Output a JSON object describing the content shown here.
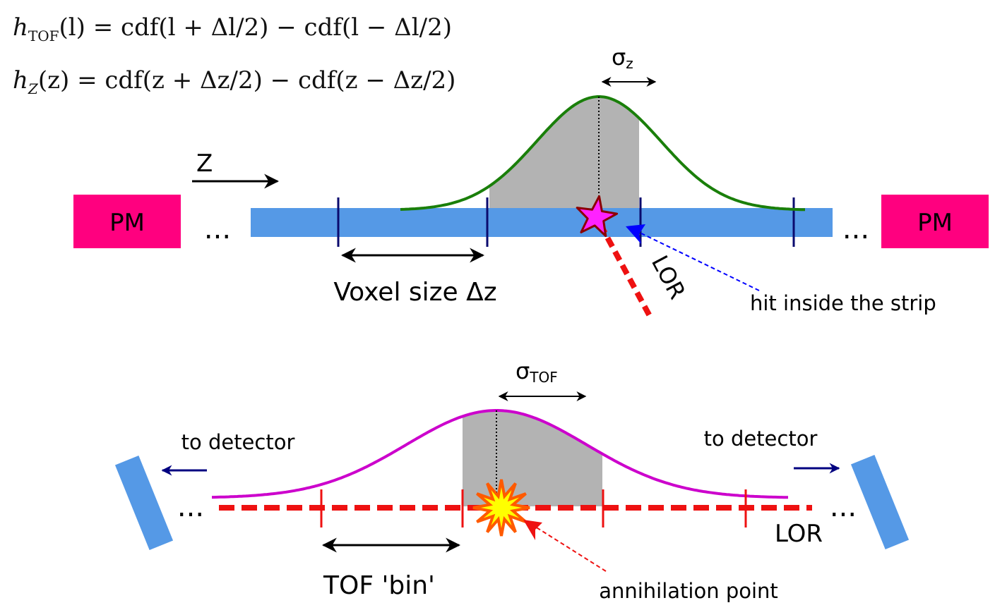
{
  "equations": {
    "tof_lhs": "h",
    "tof_sub": "TOF",
    "tof_rhs": "(l) = cdf(l + Δl/2) − cdf(l − Δl/2)",
    "z_lhs": "h",
    "z_sub": "Z",
    "z_rhs": "(z) = cdf(z + Δz/2) − cdf(z − Δz/2)"
  },
  "top_panel": {
    "axis_label": "Z",
    "pm_left": "PM",
    "pm_right": "PM",
    "ellipsis": "...",
    "sigma_symbol": "σ",
    "sigma_sub": "z",
    "voxel_label": "Voxel size Δz",
    "lor_label": "LOR",
    "hit_label": "hit inside the strip"
  },
  "bottom_panel": {
    "sigma_symbol": "σ",
    "sigma_sub": "TOF",
    "to_detector_left": "to detector",
    "to_detector_right": "to detector",
    "ellipsis": "...",
    "lor_label": "LOR",
    "bin_label": "TOF 'bin'",
    "annihilation_label": "annihilation point"
  },
  "colors": {
    "pm": "#ff007f",
    "strip": "#5599e6",
    "gaussian_top": "#1a7f0a",
    "gaussian_bottom": "#cc00cc",
    "lor": "#ee1111",
    "shade": "#b3b3b3",
    "tick_top": "#0a0a6e",
    "hit_arrow": "#0000ff",
    "detector_arrow": "#000080",
    "star_fill": "#ff22ff",
    "star_stroke": "#8b0000",
    "burst_fill": "#ffff00",
    "burst_stroke": "#ff5a00"
  }
}
